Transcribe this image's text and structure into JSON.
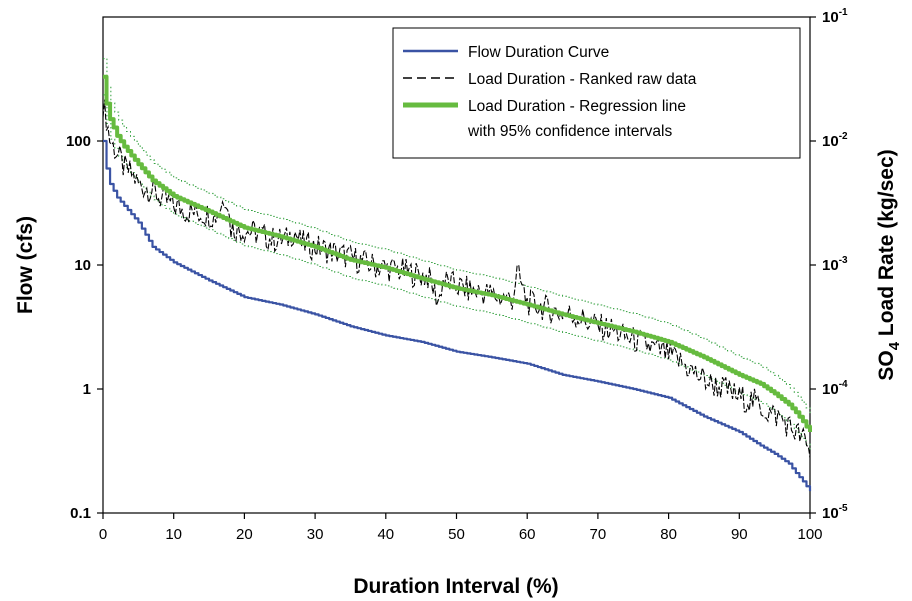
{
  "chart_data": {
    "type": "line",
    "title": "",
    "xlabel": "Duration Interval (%)",
    "ylabel_left": "Flow (cfs)",
    "ylabel_right": {
      "prefix": "SO",
      "subscript": "4",
      "suffix": " Load Rate (kg/sec)"
    },
    "x_ticks": [
      "0",
      "10",
      "20",
      "30",
      "40",
      "50",
      "60",
      "70",
      "80",
      "90",
      "100"
    ],
    "xlim": [
      0,
      100
    ],
    "y_left": {
      "scale": "log",
      "lim": [
        0.1,
        1000
      ],
      "ticks": [
        "0.1",
        "1",
        "10",
        "100"
      ]
    },
    "y_right": {
      "scale": "log",
      "lim": [
        1e-05,
        0.1
      ],
      "ticks": [
        {
          "base": "10",
          "exp": "-5"
        },
        {
          "base": "10",
          "exp": "-4"
        },
        {
          "base": "10",
          "exp": "-3"
        },
        {
          "base": "10",
          "exp": "-2"
        },
        {
          "base": "10",
          "exp": "-1"
        }
      ]
    },
    "grid": false,
    "legend_position": "top-right",
    "legend": [
      {
        "label": "Flow Duration Curve",
        "color": "#3a53a4",
        "style": "solid"
      },
      {
        "label": "Load Duration - Ranked raw data",
        "color": "#000000",
        "style": "dashed"
      },
      {
        "label": "Load Duration - Regression line",
        "label2": "with 95% confidence intervals",
        "color": "#66bb3f",
        "style": "thick"
      }
    ],
    "series": [
      {
        "name": "Flow Duration Curve",
        "axis": "left",
        "color": "#3a53a4",
        "x": [
          0,
          0.5,
          1,
          2,
          3,
          5,
          7,
          10,
          15,
          20,
          25,
          30,
          35,
          40,
          45,
          50,
          55,
          60,
          65,
          70,
          75,
          80,
          85,
          90,
          93,
          95,
          97,
          98,
          99,
          100
        ],
        "y": [
          100,
          60,
          45,
          35,
          30,
          22,
          14,
          10.5,
          7.5,
          5.5,
          4.8,
          4,
          3.2,
          2.7,
          2.4,
          2,
          1.8,
          1.6,
          1.3,
          1.15,
          1,
          0.85,
          0.6,
          0.45,
          0.35,
          0.3,
          0.25,
          0.21,
          0.18,
          0.15
        ]
      },
      {
        "name": "Load Duration - Ranked raw data",
        "axis": "right",
        "color": "#000000",
        "x": [
          0,
          0.5,
          1,
          2,
          3,
          4,
          5,
          6,
          7,
          8,
          10,
          12,
          14,
          16,
          17.5,
          18,
          20,
          22,
          24,
          26,
          27,
          28,
          30,
          32,
          34,
          36,
          38,
          40,
          42,
          44,
          46,
          47.5,
          48,
          50,
          52,
          54,
          56,
          58,
          58.5,
          60,
          62,
          64,
          66,
          68,
          70,
          72,
          74,
          76,
          78,
          80,
          82,
          84,
          86,
          88,
          90,
          92,
          94,
          96,
          97,
          98,
          99,
          100
        ],
        "y": [
          0.02,
          0.015,
          0.01,
          0.008,
          0.006,
          0.0055,
          0.0045,
          0.0042,
          0.004,
          0.0035,
          0.003,
          0.0027,
          0.0026,
          0.0025,
          0.0038,
          0.002,
          0.0019,
          0.0018,
          0.0016,
          0.0016,
          0.0019,
          0.0015,
          0.0014,
          0.0013,
          0.0012,
          0.0011,
          0.001,
          0.00095,
          0.0009,
          0.00085,
          0.0008,
          0.0005,
          0.00075,
          0.00068,
          0.00062,
          0.0006,
          0.00055,
          0.00053,
          0.0009,
          0.0005,
          0.00046,
          0.00042,
          0.0004,
          0.00036,
          0.00032,
          0.0003,
          0.00026,
          0.00024,
          0.00021,
          0.00019,
          0.00016,
          0.00013,
          0.00011,
          0.0001,
          8.5e-05,
          8e-05,
          6.5e-05,
          5.8e-05,
          5e-05,
          4.5e-05,
          4e-05,
          3e-05
        ]
      },
      {
        "name": "Load Duration - Regression line",
        "axis": "right",
        "color": "#66bb3f",
        "x": [
          0,
          0.5,
          1,
          2,
          3,
          5,
          7,
          10,
          12,
          15,
          20,
          25,
          30,
          35,
          40,
          45,
          50,
          55,
          60,
          65,
          70,
          75,
          80,
          85,
          90,
          93,
          95,
          97,
          98,
          99,
          100
        ],
        "y": [
          0.033,
          0.02,
          0.015,
          0.011,
          0.009,
          0.0065,
          0.0048,
          0.0036,
          0.0032,
          0.0027,
          0.002,
          0.0017,
          0.0014,
          0.0011,
          0.00095,
          0.00078,
          0.00065,
          0.00057,
          0.00048,
          0.0004,
          0.00034,
          0.00029,
          0.00024,
          0.00018,
          0.00013,
          0.00011,
          9.2e-05,
          7.5e-05,
          6.5e-05,
          5.5e-05,
          4.5e-05
        ]
      }
    ],
    "confidence_band_factor": 1.4,
    "colors": {
      "axis": "#000000",
      "flow": "#3a53a4",
      "load_raw": "#000000",
      "regression": "#66bb3f",
      "confidence": "#2e9e3a"
    }
  }
}
